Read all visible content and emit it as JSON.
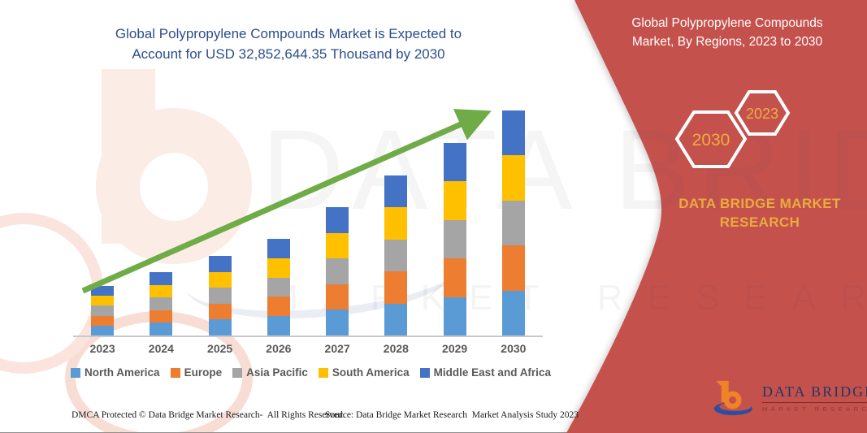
{
  "header": {
    "chart_title": "Global Polypropylene Compounds Market is Expected to Account for USD 32,852,644.35 Thousand by 2030"
  },
  "side_panel": {
    "title": "Global Polypropylene Compounds Market, By Regions, 2023 to 2030",
    "hexagons": [
      {
        "label": "2030"
      },
      {
        "label": "2023"
      }
    ],
    "brand_text": "DATA BRIDGE MARKET RESEARCH",
    "background_color": "#C5514D",
    "accent_text_color": "#E9AC3D"
  },
  "logo": {
    "name_line": "DATA BRIDGE",
    "sub_line": "MARKET RESEARCH"
  },
  "watermark": {
    "line1": "DATA BRIDGE",
    "line2": "MARKET RESEARCH"
  },
  "footer": {
    "left": "DMCA Protected © Data Bridge Market Research-  All Rights Reserved.",
    "source": "Source: Data Bridge Market Research  Market Analysis Study 2023"
  },
  "chart_data": {
    "type": "bar",
    "subtype": "stacked-vertical",
    "title": "Global Polypropylene Compounds Market is Expected to Account for USD 32,852,644.35 Thousand by 2030",
    "categories": [
      "2023",
      "2024",
      "2025",
      "2026",
      "2027",
      "2028",
      "2029",
      "2030"
    ],
    "series": [
      {
        "name": "North America",
        "color": "#5B9BD5",
        "values": [
          1446944,
          1850191,
          2324599,
          2822728,
          3747823,
          4672919,
          5621735,
          6570529
        ]
      },
      {
        "name": "Europe",
        "color": "#ED7D31",
        "values": [
          1446944,
          1850191,
          2324599,
          2822728,
          3747823,
          4672919,
          5621735,
          6570529
        ]
      },
      {
        "name": "Asia Pacific",
        "color": "#A5A5A5",
        "values": [
          1446944,
          1850191,
          2324599,
          2822728,
          3747823,
          4672919,
          5621735,
          6570529
        ]
      },
      {
        "name": "South America",
        "color": "#FFC000",
        "values": [
          1446944,
          1850191,
          2324599,
          2822728,
          3747823,
          4672919,
          5621735,
          6570529
        ]
      },
      {
        "name": "Middle East and Africa",
        "color": "#4472C4",
        "values": [
          1446944,
          1850191,
          2324599,
          2822728,
          3747823,
          4672919,
          5621735,
          6570529
        ]
      }
    ],
    "totals_estimated": [
      7234722,
      9250956,
      11622996,
      14113638,
      18739116,
      23364594,
      28108674,
      32852644.35
    ],
    "units": "USD Thousand",
    "values_estimated": true,
    "ylabel": "",
    "xlabel": "",
    "y_axis_shown": false,
    "grid": false,
    "legend_position": "bottom",
    "annotations": [
      "green upward trend arrow from 2023 to 2030"
    ],
    "trend_arrow_color": "#6FAC47"
  }
}
